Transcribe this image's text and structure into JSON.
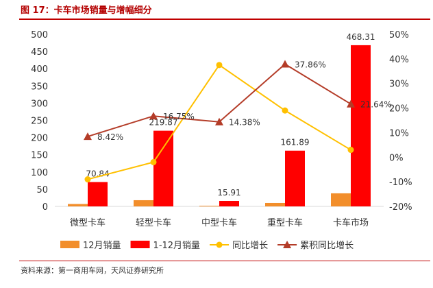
{
  "title": "图 17：卡车市场销量与增幅细分",
  "source": "资料来源：第一商用车网，天风证券研究所",
  "chart_data": {
    "type": "bar",
    "categories": [
      "微型卡车",
      "轻型卡车",
      "中型卡车",
      "重型卡车",
      "卡车市场"
    ],
    "ylim_left": [
      0,
      500
    ],
    "yticks_left": [
      "0",
      "50",
      "100",
      "150",
      "200",
      "250",
      "300",
      "350",
      "400",
      "450",
      "500"
    ],
    "ylim_right": [
      -0.2,
      0.5
    ],
    "yticks_right": [
      "-20%",
      "-10%",
      "0%",
      "10%",
      "20%",
      "30%",
      "40%",
      "50%"
    ],
    "legend_position": "bottom",
    "grid": false,
    "series": [
      {
        "name": "12月销量",
        "type": "bar",
        "axis": "left",
        "color": "#f28e2b",
        "values": [
          7,
          18,
          2,
          10,
          38
        ],
        "labels": [
          "",
          "",
          "",
          "",
          ""
        ]
      },
      {
        "name": "1-12月销量",
        "type": "bar",
        "axis": "left",
        "color": "#ff0000",
        "values": [
          70.84,
          219.87,
          15.91,
          161.89,
          468.31
        ],
        "labels": [
          "70.84",
          "219.87",
          "15.91",
          "161.89",
          "468.31"
        ]
      },
      {
        "name": "同比增长",
        "type": "line",
        "axis": "right",
        "color": "#ffc000",
        "marker": "circle",
        "values": [
          -0.09,
          -0.02,
          0.375,
          0.19,
          0.03
        ],
        "labels": [
          "",
          "",
          "",
          "",
          ""
        ]
      },
      {
        "name": "累积同比增长",
        "type": "line",
        "axis": "right",
        "color": "#b43c28",
        "marker": "triangle",
        "values": [
          0.0842,
          0.1675,
          0.1438,
          0.3786,
          0.2164
        ],
        "labels": [
          "8.42%",
          "16.75%",
          "14.38%",
          "37.86%",
          "21.64%"
        ]
      }
    ]
  }
}
